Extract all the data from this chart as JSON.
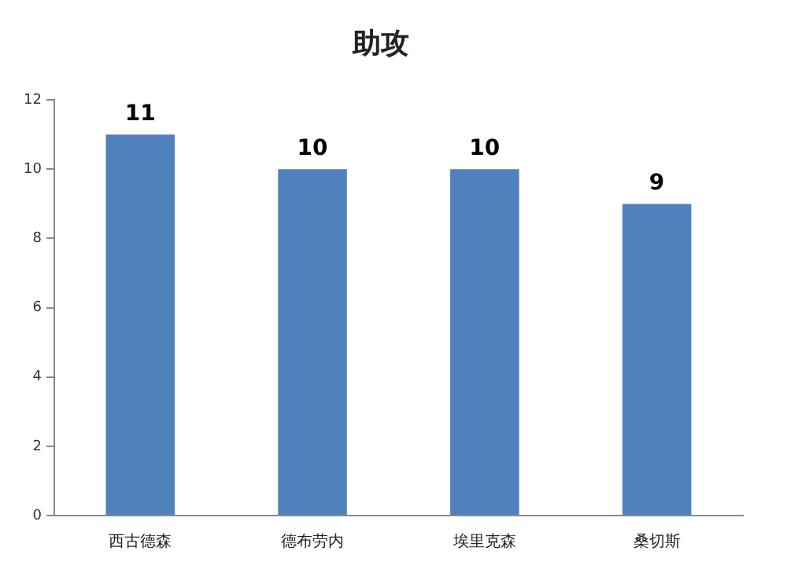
{
  "chart_data": {
    "type": "bar",
    "title": "助攻",
    "categories": [
      "西古德森",
      "德布劳内",
      "埃里克森",
      "桑切斯"
    ],
    "values": [
      11,
      10,
      10,
      9
    ],
    "color": "#4f81bd",
    "ylim": [
      0,
      12
    ],
    "yticks": [
      0,
      2,
      4,
      6,
      8,
      10,
      12
    ],
    "grid": false,
    "legend": false,
    "data_labels": true
  }
}
